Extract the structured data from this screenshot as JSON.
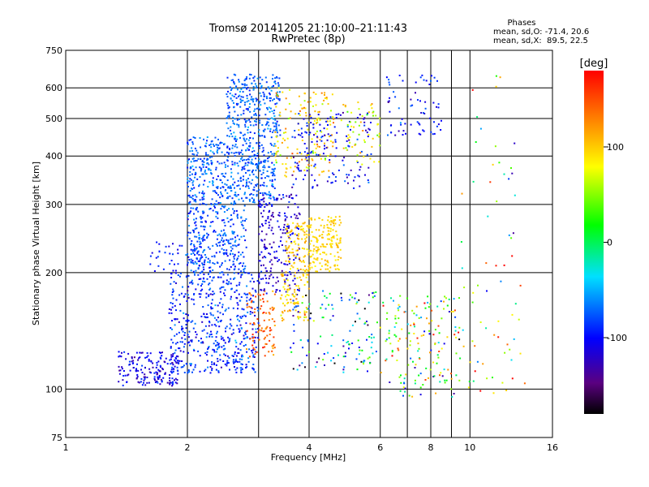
{
  "chart_data": {
    "type": "scatter",
    "title": "Tromsø 20141205 21:10:00–21:11:43",
    "subtitle": "RwPretec (8p)",
    "stats": {
      "header": "Phases",
      "line1": "mean, sd,O: -71.4, 20.6",
      "line2": "mean, sd,X:  89.5, 22.5"
    },
    "xlabel": "Frequency [MHz]",
    "ylabel": "Stationary phase Virtual Height [km]",
    "x_scale": "log",
    "y_scale": "log",
    "xlim": [
      1,
      16
    ],
    "ylim": [
      75,
      750
    ],
    "x_ticks": [
      1,
      2,
      4,
      6,
      8,
      10,
      16
    ],
    "x_tick_labels": [
      "1",
      "2",
      "4",
      "6",
      "8",
      "10",
      "16"
    ],
    "x_grid": [
      2,
      3,
      4,
      6,
      7,
      8,
      9,
      10
    ],
    "y_ticks": [
      75,
      100,
      200,
      300,
      400,
      500,
      600,
      750
    ],
    "y_tick_labels": [
      "75",
      "100",
      "200",
      "300",
      "400",
      "500",
      "600",
      "750"
    ],
    "y_grid": [
      100,
      200,
      300,
      400,
      500,
      600
    ],
    "grid": true,
    "colorbar": {
      "label": "[deg]",
      "range": [
        -180,
        180
      ],
      "ticks": [
        100,
        0,
        -100
      ],
      "tick_labels": [
        "100",
        "0",
        "-100"
      ]
    },
    "clusters": [
      {
        "fmin": 1.35,
        "fmax": 1.9,
        "hmin": 102,
        "hmax": 125,
        "phase": -110,
        "sd": 20,
        "n": 180
      },
      {
        "fmin": 1.8,
        "fmax": 3.0,
        "hmin": 110,
        "hmax": 200,
        "phase": -90,
        "sd": 25,
        "n": 520
      },
      {
        "fmin": 1.6,
        "fmax": 2.2,
        "hmin": 200,
        "hmax": 240,
        "phase": -95,
        "sd": 20,
        "n": 50
      },
      {
        "fmin": 2.0,
        "fmax": 2.8,
        "hmin": 200,
        "hmax": 300,
        "phase": -80,
        "sd": 20,
        "n": 300
      },
      {
        "fmin": 2.0,
        "fmax": 3.3,
        "hmin": 300,
        "hmax": 450,
        "phase": -75,
        "sd": 18,
        "n": 520
      },
      {
        "fmin": 2.5,
        "fmax": 3.4,
        "hmin": 450,
        "hmax": 650,
        "phase": -75,
        "sd": 18,
        "n": 280
      },
      {
        "fmin": 2.8,
        "fmax": 3.3,
        "hmin": 120,
        "hmax": 180,
        "phase": 145,
        "sd": 25,
        "n": 90
      },
      {
        "fmin": 3.0,
        "fmax": 3.8,
        "hmin": 175,
        "hmax": 320,
        "phase": -115,
        "sd": 20,
        "n": 220
      },
      {
        "fmin": 3.5,
        "fmax": 4.0,
        "hmin": 200,
        "hmax": 270,
        "phase": 100,
        "sd": 15,
        "n": 100
      },
      {
        "fmin": 4.0,
        "fmax": 4.8,
        "hmin": 200,
        "hmax": 280,
        "phase": 95,
        "sd": 12,
        "n": 160
      },
      {
        "fmin": 3.4,
        "fmax": 4.0,
        "hmin": 150,
        "hmax": 200,
        "phase": 100,
        "sd": 30,
        "n": 90
      },
      {
        "fmin": 3.3,
        "fmax": 4.6,
        "hmin": 350,
        "hmax": 600,
        "phase": 95,
        "sd": 35,
        "n": 160
      },
      {
        "fmin": 3.6,
        "fmax": 5.7,
        "hmin": 330,
        "hmax": 520,
        "phase": -100,
        "sd": 25,
        "n": 150
      },
      {
        "fmin": 4.8,
        "fmax": 6.0,
        "hmin": 380,
        "hmax": 560,
        "phase": 80,
        "sd": 40,
        "n": 60
      },
      {
        "fmin": 6.2,
        "fmax": 8.5,
        "hmin": 450,
        "hmax": 650,
        "phase": -100,
        "sd": 25,
        "n": 70
      },
      {
        "fmin": 3.6,
        "fmax": 5.9,
        "hmin": 110,
        "hmax": 180,
        "phase": -60,
        "sd": 90,
        "n": 130
      },
      {
        "fmin": 6.0,
        "fmax": 9.5,
        "hmin": 95,
        "hmax": 175,
        "phase": 40,
        "sd": 110,
        "n": 170
      },
      {
        "fmin": 9.5,
        "fmax": 14.0,
        "hmin": 95,
        "hmax": 190,
        "phase": 60,
        "sd": 90,
        "n": 40
      },
      {
        "fmin": 9.5,
        "fmax": 13.0,
        "hmin": 200,
        "hmax": 660,
        "phase": 30,
        "sd": 110,
        "n": 30
      }
    ]
  }
}
